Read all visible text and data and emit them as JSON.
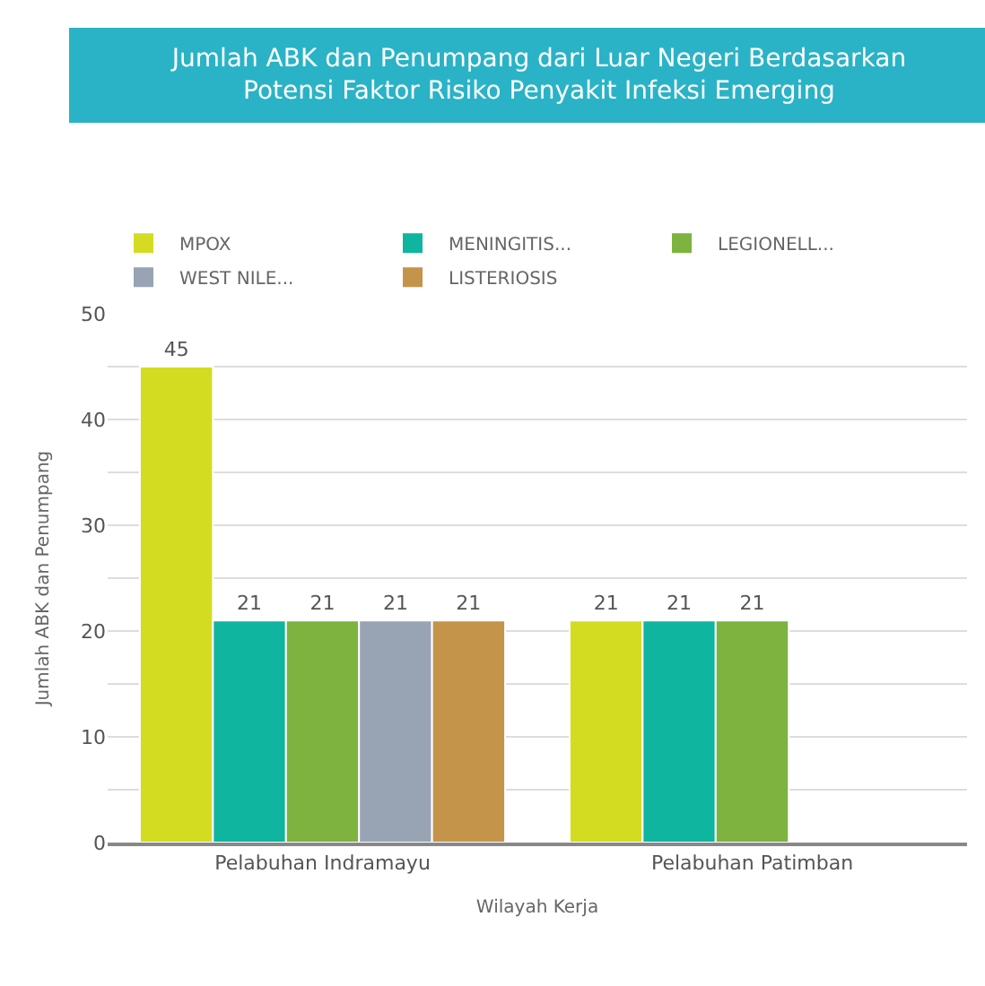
{
  "chart_data": {
    "type": "bar",
    "title": "Jumlah ABK dan Penumpang dari Luar Negeri Berdasarkan\nPotensi Faktor Risiko Penyakit Infeksi Emerging",
    "xlabel": "Wilayah Kerja",
    "ylabel": "Jumlah ABK dan Penumpang",
    "categories": [
      "Pelabuhan Indramayu",
      "Pelabuhan Patimban"
    ],
    "series": [
      {
        "name": "MPOX",
        "color": "#d4dc22",
        "values": [
          45,
          21
        ]
      },
      {
        "name": "MENINGITIS...",
        "color": "#0fb59f",
        "values": [
          21,
          21
        ]
      },
      {
        "name": "LEGIONELL...",
        "color": "#7db33e",
        "values": [
          21,
          21
        ]
      },
      {
        "name": "WEST NILE...",
        "color": "#98a3b3",
        "values": [
          21,
          null
        ]
      },
      {
        "name": "LISTERIOSIS",
        "color": "#c4944a",
        "values": [
          21,
          null
        ]
      }
    ],
    "ylim": [
      0,
      50
    ],
    "yticks": [
      0,
      {
        "value": 5,
        "label": null
      },
      10,
      {
        "value": 15,
        "label": null
      },
      20,
      {
        "value": 25,
        "label": null
      },
      30,
      {
        "value": 35,
        "label": null
      },
      40,
      {
        "value": 45,
        "label": null
      },
      50
    ],
    "grid": "y",
    "legend": "top",
    "data_labels": true
  }
}
